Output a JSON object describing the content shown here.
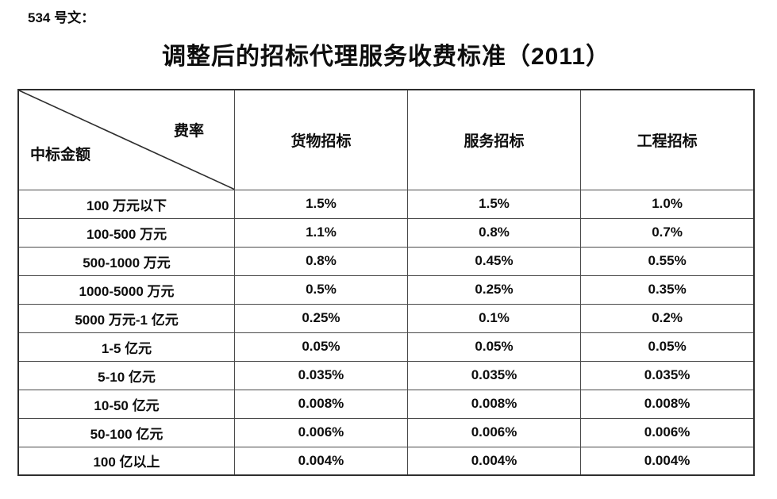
{
  "doc_label": "534 号文：",
  "title": "调整后的招标代理服务收费标准（2011）",
  "colors": {
    "text": "#0d0d0d",
    "table_border": "#2e2e2e",
    "grid_line": "#4a4a4a",
    "background": "#ffffff"
  },
  "table": {
    "corner": {
      "top_right": "费率",
      "bottom_left": "中标金额"
    },
    "columns": [
      "货物招标",
      "服务招标",
      "工程招标"
    ],
    "rows": [
      {
        "label": "100 万元以下",
        "values": [
          "1.5%",
          "1.5%",
          "1.0%"
        ]
      },
      {
        "label": "100-500 万元",
        "values": [
          "1.1%",
          "0.8%",
          "0.7%"
        ]
      },
      {
        "label": "500-1000 万元",
        "values": [
          "0.8%",
          "0.45%",
          "0.55%"
        ]
      },
      {
        "label": "1000-5000 万元",
        "values": [
          "0.5%",
          "0.25%",
          "0.35%"
        ]
      },
      {
        "label": "5000 万元-1 亿元",
        "values": [
          "0.25%",
          "0.1%",
          "0.2%"
        ]
      },
      {
        "label": "1-5 亿元",
        "values": [
          "0.05%",
          "0.05%",
          "0.05%"
        ]
      },
      {
        "label": "5-10 亿元",
        "values": [
          "0.035%",
          "0.035%",
          "0.035%"
        ]
      },
      {
        "label": "10-50 亿元",
        "values": [
          "0.008%",
          "0.008%",
          "0.008%"
        ]
      },
      {
        "label": "50-100 亿元",
        "values": [
          "0.006%",
          "0.006%",
          "0.006%"
        ]
      },
      {
        "label": "100 亿以上",
        "values": [
          "0.004%",
          "0.004%",
          "0.004%"
        ]
      }
    ]
  }
}
